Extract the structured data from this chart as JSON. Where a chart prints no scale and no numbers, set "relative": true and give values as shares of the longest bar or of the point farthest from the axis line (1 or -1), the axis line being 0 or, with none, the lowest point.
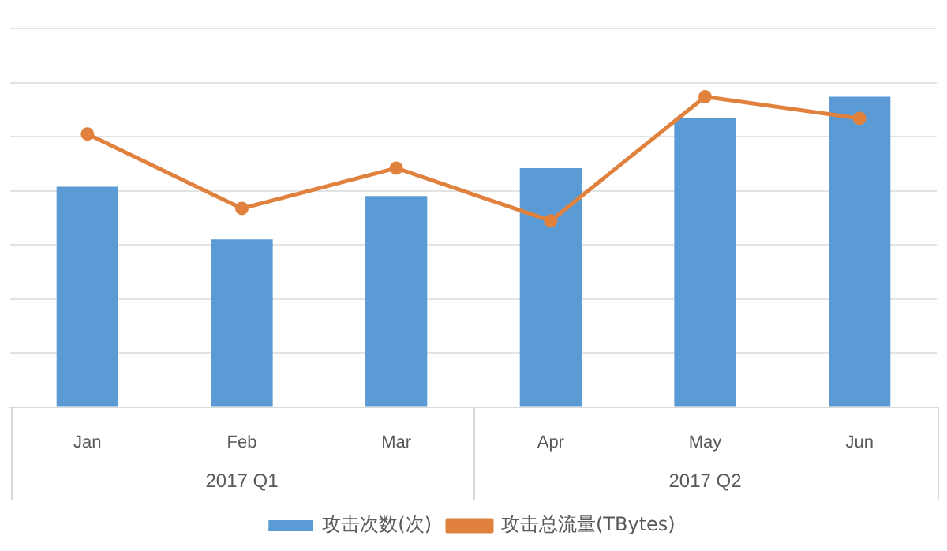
{
  "chart_data": {
    "type": "bar",
    "relative": true,
    "categories": [
      "Jan",
      "Feb",
      "Mar",
      "Apr",
      "May",
      "Jun"
    ],
    "series": [
      {
        "name": "攻击次数(次)",
        "color": "#5b9bd5",
        "values": [
          0.71,
          0.54,
          0.68,
          0.77,
          0.93,
          1
        ]
      },
      {
        "name": "攻击总流量(TBytes)",
        "type": "line",
        "color": "#e0823d",
        "values": [
          0.88,
          0.64,
          0.77,
          0.6,
          1,
          0.93
        ]
      }
    ],
    "annotations": [
      "2017 Q1",
      "2017 Q2"
    ],
    "grid": "y",
    "legend": "bottom",
    "marker": "circle",
    "line_style": "solid"
  }
}
